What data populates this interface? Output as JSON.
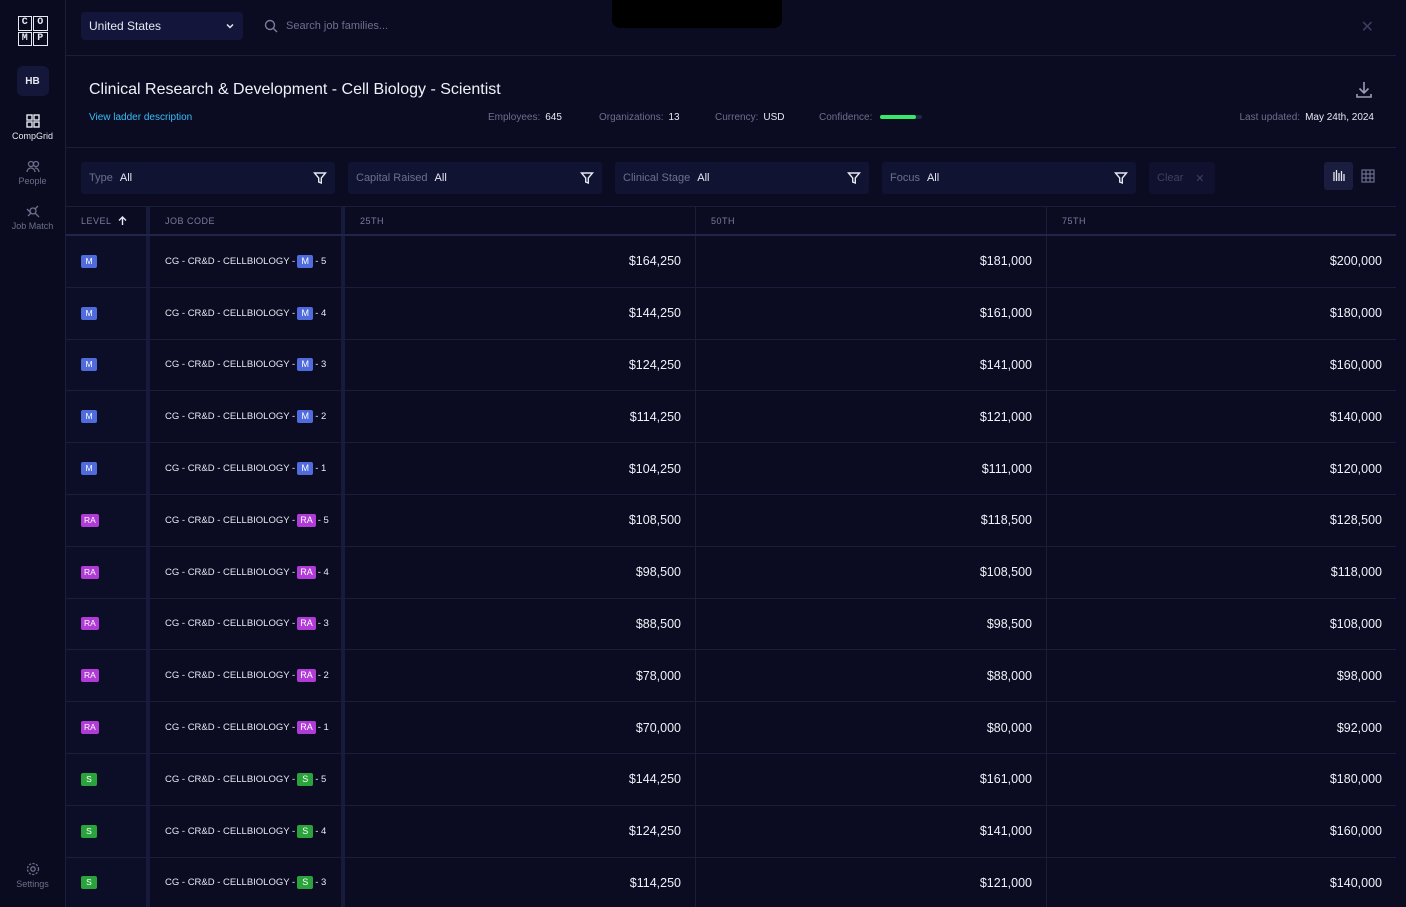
{
  "sidebar": {
    "logo_letters": [
      "C",
      "O",
      "M",
      "P"
    ],
    "avatar": "HB",
    "nav": [
      {
        "label": "CompGrid",
        "icon": "grid-icon",
        "active": true
      },
      {
        "label": "People",
        "icon": "people-icon",
        "active": false
      },
      {
        "label": "Job Match",
        "icon": "satellite-icon",
        "active": false
      }
    ],
    "settings_label": "Settings"
  },
  "topbar": {
    "country": "United States",
    "search_placeholder": "Search job families..."
  },
  "header": {
    "title": "Clinical Research & Development - Cell Biology - Scientist",
    "ladder_link": "View ladder description",
    "employees_label": "Employees:",
    "employees": "645",
    "organizations_label": "Organizations:",
    "organizations": "13",
    "currency_label": "Currency:",
    "currency": "USD",
    "confidence_label": "Confidence:",
    "confidence_level": 0.85,
    "last_updated_label": "Last updated:",
    "last_updated": "May 24th, 2024"
  },
  "filters": [
    {
      "label": "Type",
      "value": "All"
    },
    {
      "label": "Capital Raised",
      "value": "All"
    },
    {
      "label": "Clinical Stage",
      "value": "All"
    },
    {
      "label": "Focus",
      "value": "All"
    }
  ],
  "clear_label": "Clear",
  "table": {
    "headers": {
      "level": "LEVEL",
      "code": "JOB CODE",
      "p25": "25TH",
      "p50": "50TH",
      "p75": "75TH"
    },
    "track_colors": {
      "M": "#4f6bdc",
      "RA": "#b03bd6",
      "S": "#2aa33c"
    },
    "rows": [
      {
        "track": "M",
        "code_prefix": "CG - CR&D - CELLBIOLOGY -",
        "code_suffix": "- 5",
        "p25": "$164,250",
        "p50": "$181,000",
        "p75": "$200,000"
      },
      {
        "track": "M",
        "code_prefix": "CG - CR&D - CELLBIOLOGY -",
        "code_suffix": "- 4",
        "p25": "$144,250",
        "p50": "$161,000",
        "p75": "$180,000"
      },
      {
        "track": "M",
        "code_prefix": "CG - CR&D - CELLBIOLOGY -",
        "code_suffix": "- 3",
        "p25": "$124,250",
        "p50": "$141,000",
        "p75": "$160,000"
      },
      {
        "track": "M",
        "code_prefix": "CG - CR&D - CELLBIOLOGY -",
        "code_suffix": "- 2",
        "p25": "$114,250",
        "p50": "$121,000",
        "p75": "$140,000"
      },
      {
        "track": "M",
        "code_prefix": "CG - CR&D - CELLBIOLOGY -",
        "code_suffix": "- 1",
        "p25": "$104,250",
        "p50": "$111,000",
        "p75": "$120,000"
      },
      {
        "track": "RA",
        "code_prefix": "CG - CR&D - CELLBIOLOGY -",
        "code_suffix": "- 5",
        "p25": "$108,500",
        "p50": "$118,500",
        "p75": "$128,500"
      },
      {
        "track": "RA",
        "code_prefix": "CG - CR&D - CELLBIOLOGY -",
        "code_suffix": "- 4",
        "p25": "$98,500",
        "p50": "$108,500",
        "p75": "$118,000"
      },
      {
        "track": "RA",
        "code_prefix": "CG - CR&D - CELLBIOLOGY -",
        "code_suffix": "- 3",
        "p25": "$88,500",
        "p50": "$98,500",
        "p75": "$108,000"
      },
      {
        "track": "RA",
        "code_prefix": "CG - CR&D - CELLBIOLOGY -",
        "code_suffix": "- 2",
        "p25": "$78,000",
        "p50": "$88,000",
        "p75": "$98,000"
      },
      {
        "track": "RA",
        "code_prefix": "CG - CR&D - CELLBIOLOGY -",
        "code_suffix": "- 1",
        "p25": "$70,000",
        "p50": "$80,000",
        "p75": "$92,000"
      },
      {
        "track": "S",
        "code_prefix": "CG - CR&D - CELLBIOLOGY -",
        "code_suffix": "- 5",
        "p25": "$144,250",
        "p50": "$161,000",
        "p75": "$180,000"
      },
      {
        "track": "S",
        "code_prefix": "CG - CR&D - CELLBIOLOGY -",
        "code_suffix": "- 4",
        "p25": "$124,250",
        "p50": "$141,000",
        "p75": "$160,000"
      },
      {
        "track": "S",
        "code_prefix": "CG - CR&D - CELLBIOLOGY -",
        "code_suffix": "- 3",
        "p25": "$114,250",
        "p50": "$121,000",
        "p75": "$140,000"
      }
    ]
  }
}
